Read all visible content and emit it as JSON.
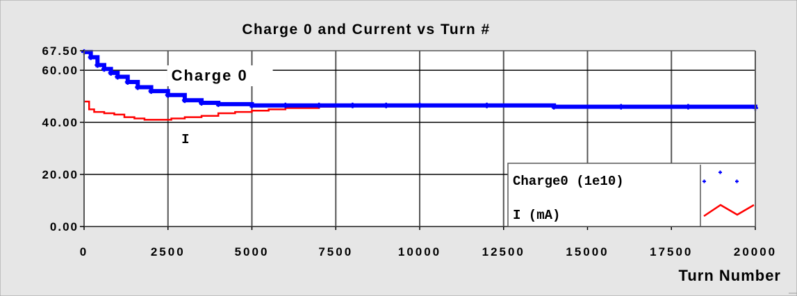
{
  "chart_data": {
    "type": "line",
    "title": "Charge 0 and Current vs Turn #",
    "xlabel": "Turn Number",
    "ylabel": "",
    "xlim": [
      0,
      20000
    ],
    "ylim": [
      0,
      67.5
    ],
    "x_ticks": [
      0,
      2500,
      5000,
      7500,
      10000,
      12500,
      15000,
      17500,
      20000
    ],
    "x_tick_labels": [
      "0",
      "2500",
      "5000",
      "7500",
      "10000",
      "12500",
      "15000",
      "17500",
      "20000"
    ],
    "y_ticks": [
      0,
      20,
      40,
      60,
      67.5
    ],
    "y_tick_labels": [
      "0.00",
      "20.00",
      "40.00",
      "60.00",
      "67.50"
    ],
    "grid": true,
    "legend_position": "bottom-right",
    "annotations": [
      {
        "text": "Charge 0",
        "x": 2600,
        "y": 56
      },
      {
        "text": "I",
        "x": 2900,
        "y": 32
      }
    ],
    "series": [
      {
        "name": "Charge0 (1e10)",
        "style": "markers",
        "color": "#0000ff",
        "x": [
          0,
          200,
          400,
          600,
          800,
          1000,
          1300,
          1600,
          2000,
          2500,
          3000,
          3500,
          4000,
          5000,
          6000,
          7000,
          8000,
          9000,
          10000,
          12000,
          14000,
          16000,
          18000,
          20000
        ],
        "y": [
          67,
          65,
          62,
          60.5,
          59,
          57.5,
          55.5,
          53.5,
          52,
          50.5,
          48.5,
          47.5,
          47,
          46.5,
          46.5,
          46.5,
          46.5,
          46.5,
          46.5,
          46.5,
          46,
          46,
          46,
          45.5
        ]
      },
      {
        "name": "I (mA)",
        "style": "line",
        "color": "#ff0000",
        "x": [
          0,
          150,
          300,
          600,
          900,
          1200,
          1500,
          1800,
          2200,
          2600,
          3000,
          3500,
          4000,
          4500,
          5000,
          5500,
          6000,
          7000,
          7500
        ],
        "y": [
          48,
          45,
          44,
          43.5,
          43,
          42,
          41.5,
          41,
          41,
          41.5,
          42,
          42.5,
          43.5,
          44,
          44.5,
          45,
          45.5,
          46,
          46
        ]
      }
    ]
  }
}
